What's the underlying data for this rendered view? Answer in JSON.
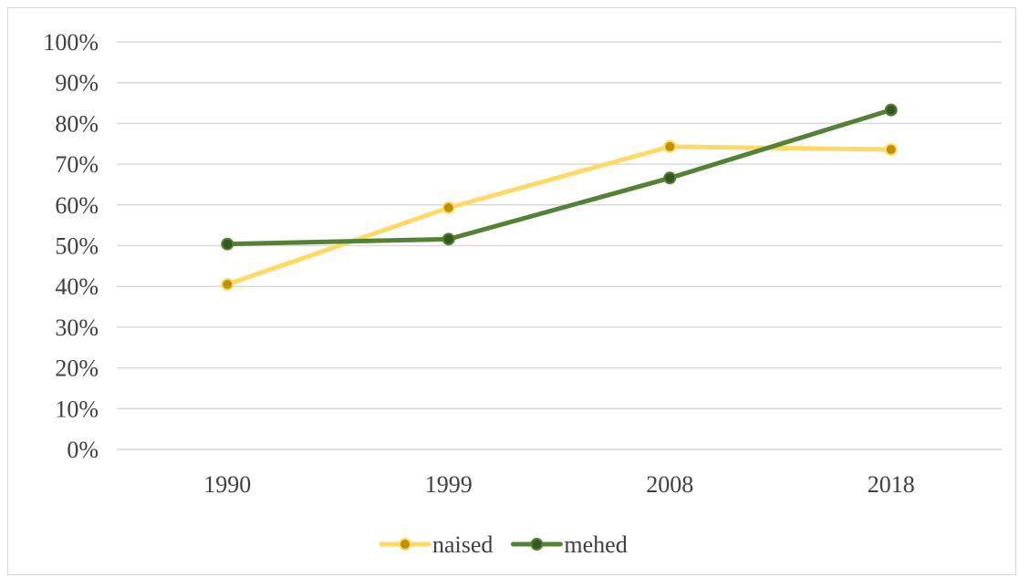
{
  "chart_data": {
    "type": "line",
    "title": "",
    "xlabel": "",
    "ylabel": "",
    "categories": [
      "1990",
      "1999",
      "2008",
      "2018"
    ],
    "y_ticks": [
      "0%",
      "10%",
      "20%",
      "30%",
      "40%",
      "50%",
      "60%",
      "70%",
      "80%",
      "90%",
      "100%"
    ],
    "ylim": [
      0,
      100
    ],
    "grid": true,
    "legend_position": "bottom",
    "series": [
      {
        "name": "naised",
        "values": [
          40.5,
          59.3,
          74.3,
          73.6
        ],
        "color": "#ffd966",
        "marker_color": "#bf9000"
      },
      {
        "name": "mehed",
        "values": [
          50.4,
          51.6,
          66.6,
          83.3
        ],
        "color": "#548235",
        "marker_color": "#375623"
      }
    ]
  }
}
